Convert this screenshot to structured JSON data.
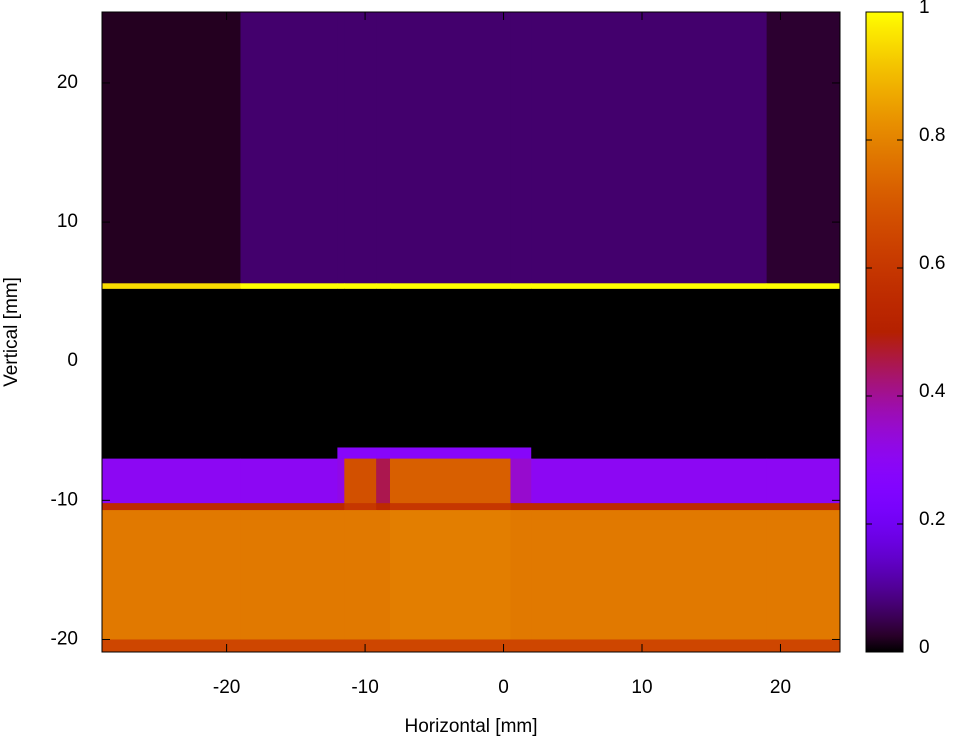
{
  "chart_data": {
    "type": "heatmap",
    "x_label": "Horizontal [mm]",
    "y_label": "Vertical [mm]",
    "colormap": "gnuplot",
    "xlim": [
      -29.0,
      24.3
    ],
    "ylim": [
      -20.9,
      25.1
    ],
    "xticks": [
      -20,
      -10,
      0,
      10,
      20
    ],
    "yticks": [
      -20,
      -10,
      0,
      10,
      20
    ],
    "x_edges": [
      -29.0,
      -19.0,
      -12.0,
      -11.5,
      -9.2,
      -8.2,
      0.5,
      2.0,
      19.0,
      24.3
    ],
    "y_edges": [
      25.1,
      5.6,
      5.2,
      -6.2,
      -7.0,
      -10.2,
      -10.7,
      -20.0,
      -20.9
    ],
    "z": [
      [
        0.02,
        0.07,
        0.07,
        0.07,
        0.07,
        0.07,
        0.07,
        0.07,
        0.03
      ],
      [
        0.95,
        1,
        1,
        1,
        1,
        1,
        1,
        1,
        1
      ],
      [
        0,
        0,
        0,
        0,
        0,
        0,
        0,
        0,
        0
      ],
      [
        0,
        0,
        0.28,
        0.28,
        0.28,
        0.28,
        0.28,
        0,
        0
      ],
      [
        0.3,
        0.3,
        0.32,
        0.68,
        0.45,
        0.72,
        0.35,
        0.3,
        0.3
      ],
      [
        0.55,
        0.55,
        0.55,
        0.6,
        0.55,
        0.6,
        0.55,
        0.55,
        0.55
      ],
      [
        0.78,
        0.78,
        0.78,
        0.78,
        0.78,
        0.79,
        0.78,
        0.78,
        0.78
      ],
      [
        0.65,
        0.65,
        0.65,
        0.65,
        0.65,
        0.65,
        0.65,
        0.65,
        0.65
      ]
    ],
    "zlim": [
      0,
      1
    ],
    "zticks": [
      0,
      0.2,
      0.4,
      0.6,
      0.8,
      1
    ]
  }
}
